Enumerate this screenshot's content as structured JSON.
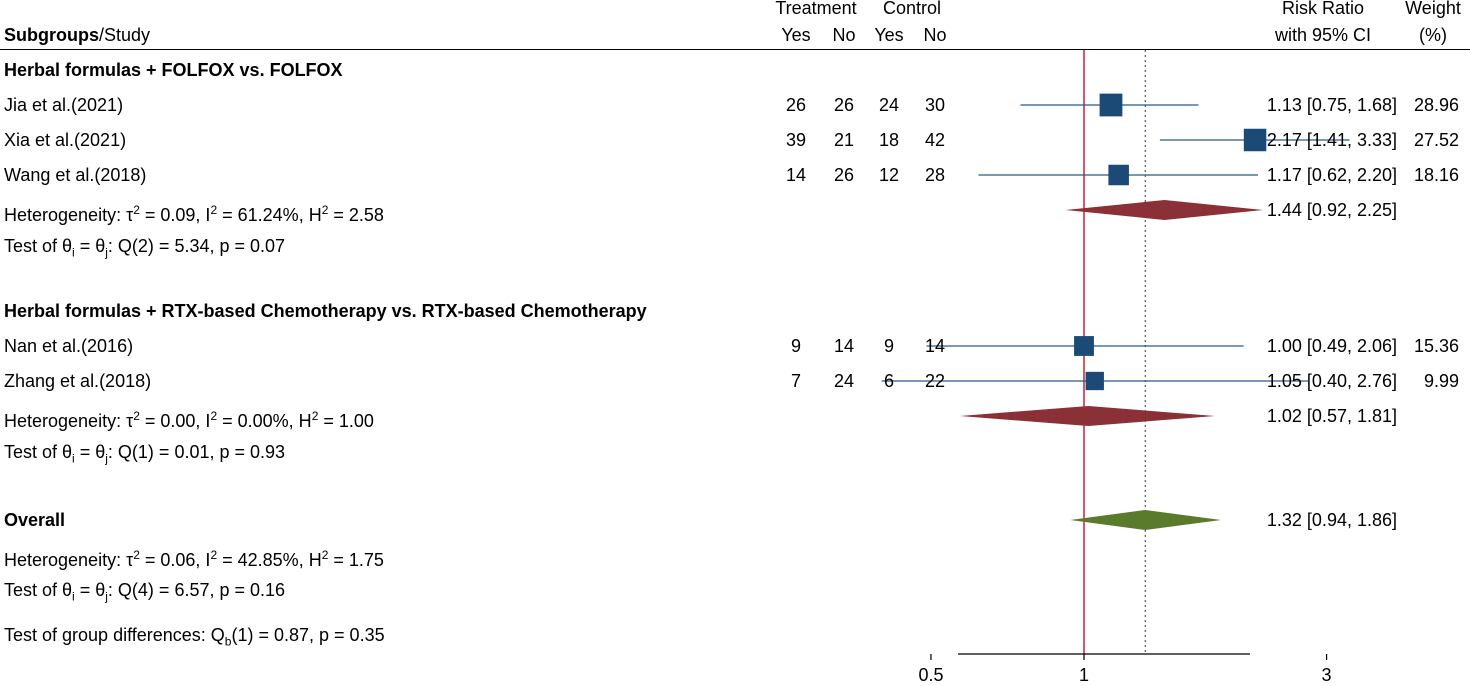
{
  "header": {
    "col_label_bold": "Subgroups",
    "col_label_rest": "/Study",
    "treatment": "Treatment",
    "control": "Control",
    "yes": "Yes",
    "no": "No",
    "rr_line1": "Risk Ratio",
    "rr_line2": "with 95% CI",
    "weight_line1": "Weight",
    "weight_line2": "(%)"
  },
  "chart_data": {
    "type": "forest",
    "x_scale": "log",
    "x_ticks": [
      0.5,
      1,
      3
    ],
    "x_tick_labels": [
      "0.5",
      "1",
      "3"
    ],
    "xlim": [
      0.4,
      3.2
    ],
    "null_line": 1,
    "overall_line": 1.32,
    "groups": [
      {
        "title": "Herbal formulas + FOLFOX vs. FOLFOX",
        "studies": [
          {
            "label": "Jia et al.(2021)",
            "t_yes": "26",
            "t_no": "26",
            "c_yes": "24",
            "c_no": "30",
            "rr": 1.13,
            "lo": 0.75,
            "hi": 1.68,
            "ci_text": "1.13 [0.75, 1.68]",
            "weight": "28.96"
          },
          {
            "label": "Xia et al.(2021)",
            "t_yes": "39",
            "t_no": "21",
            "c_yes": "18",
            "c_no": "42",
            "rr": 2.17,
            "lo": 1.41,
            "hi": 3.33,
            "ci_text": "2.17 [1.41, 3.33]",
            "weight": "27.52"
          },
          {
            "label": "Wang et al.(2018)",
            "t_yes": "14",
            "t_no": "26",
            "c_yes": "12",
            "c_no": "28",
            "rr": 1.17,
            "lo": 0.62,
            "hi": 2.2,
            "ci_text": "1.17 [0.62, 2.20]",
            "weight": "18.16"
          }
        ],
        "pooled": {
          "rr": 1.44,
          "lo": 0.92,
          "hi": 2.25,
          "ci_text": "1.44 [0.92, 2.25]"
        },
        "heterogeneity": {
          "tau2": "0.09",
          "i2": "61.24%",
          "h2": "2.58"
        },
        "test": {
          "df": "2",
          "q": "5.34",
          "p": "0.07"
        }
      },
      {
        "title": "Herbal formulas + RTX-based Chemotherapy vs. RTX-based Chemotherapy",
        "studies": [
          {
            "label": "Nan et al.(2016)",
            "t_yes": "9",
            "t_no": "14",
            "c_yes": "9",
            "c_no": "14",
            "rr": 1.0,
            "lo": 0.49,
            "hi": 2.06,
            "ci_text": "1.00 [0.49, 2.06]",
            "weight": "15.36"
          },
          {
            "label": "Zhang et al.(2018)",
            "t_yes": "7",
            "t_no": "24",
            "c_yes": "6",
            "c_no": "22",
            "rr": 1.05,
            "lo": 0.4,
            "hi": 2.76,
            "ci_text": "1.05 [0.40, 2.76]",
            "weight": "9.99"
          }
        ],
        "pooled": {
          "rr": 1.02,
          "lo": 0.57,
          "hi": 1.81,
          "ci_text": "1.02 [0.57, 1.81]"
        },
        "heterogeneity": {
          "tau2": "0.00",
          "i2": "0.00%",
          "h2": "1.00"
        },
        "test": {
          "df": "1",
          "q": "0.01",
          "p": "0.93"
        }
      }
    ],
    "overall": {
      "title": "Overall",
      "rr": 1.32,
      "lo": 0.94,
      "hi": 1.86,
      "ci_text": "1.32 [0.94, 1.86]",
      "heterogeneity": {
        "tau2": "0.06",
        "i2": "42.85%",
        "h2": "1.75"
      },
      "test": {
        "df": "4",
        "q": "6.57",
        "p": "0.16"
      }
    },
    "group_difference": {
      "df": "1",
      "q": "0.87",
      "p": "0.35"
    },
    "colors": {
      "study_marker": "#1b4a76",
      "ci_line": "#2a5a86",
      "subgroup_diamond": "#8b3037",
      "overall_diamond": "#5a7a2c",
      "null_line": "#c8102e",
      "overall_line": "#555555"
    }
  }
}
